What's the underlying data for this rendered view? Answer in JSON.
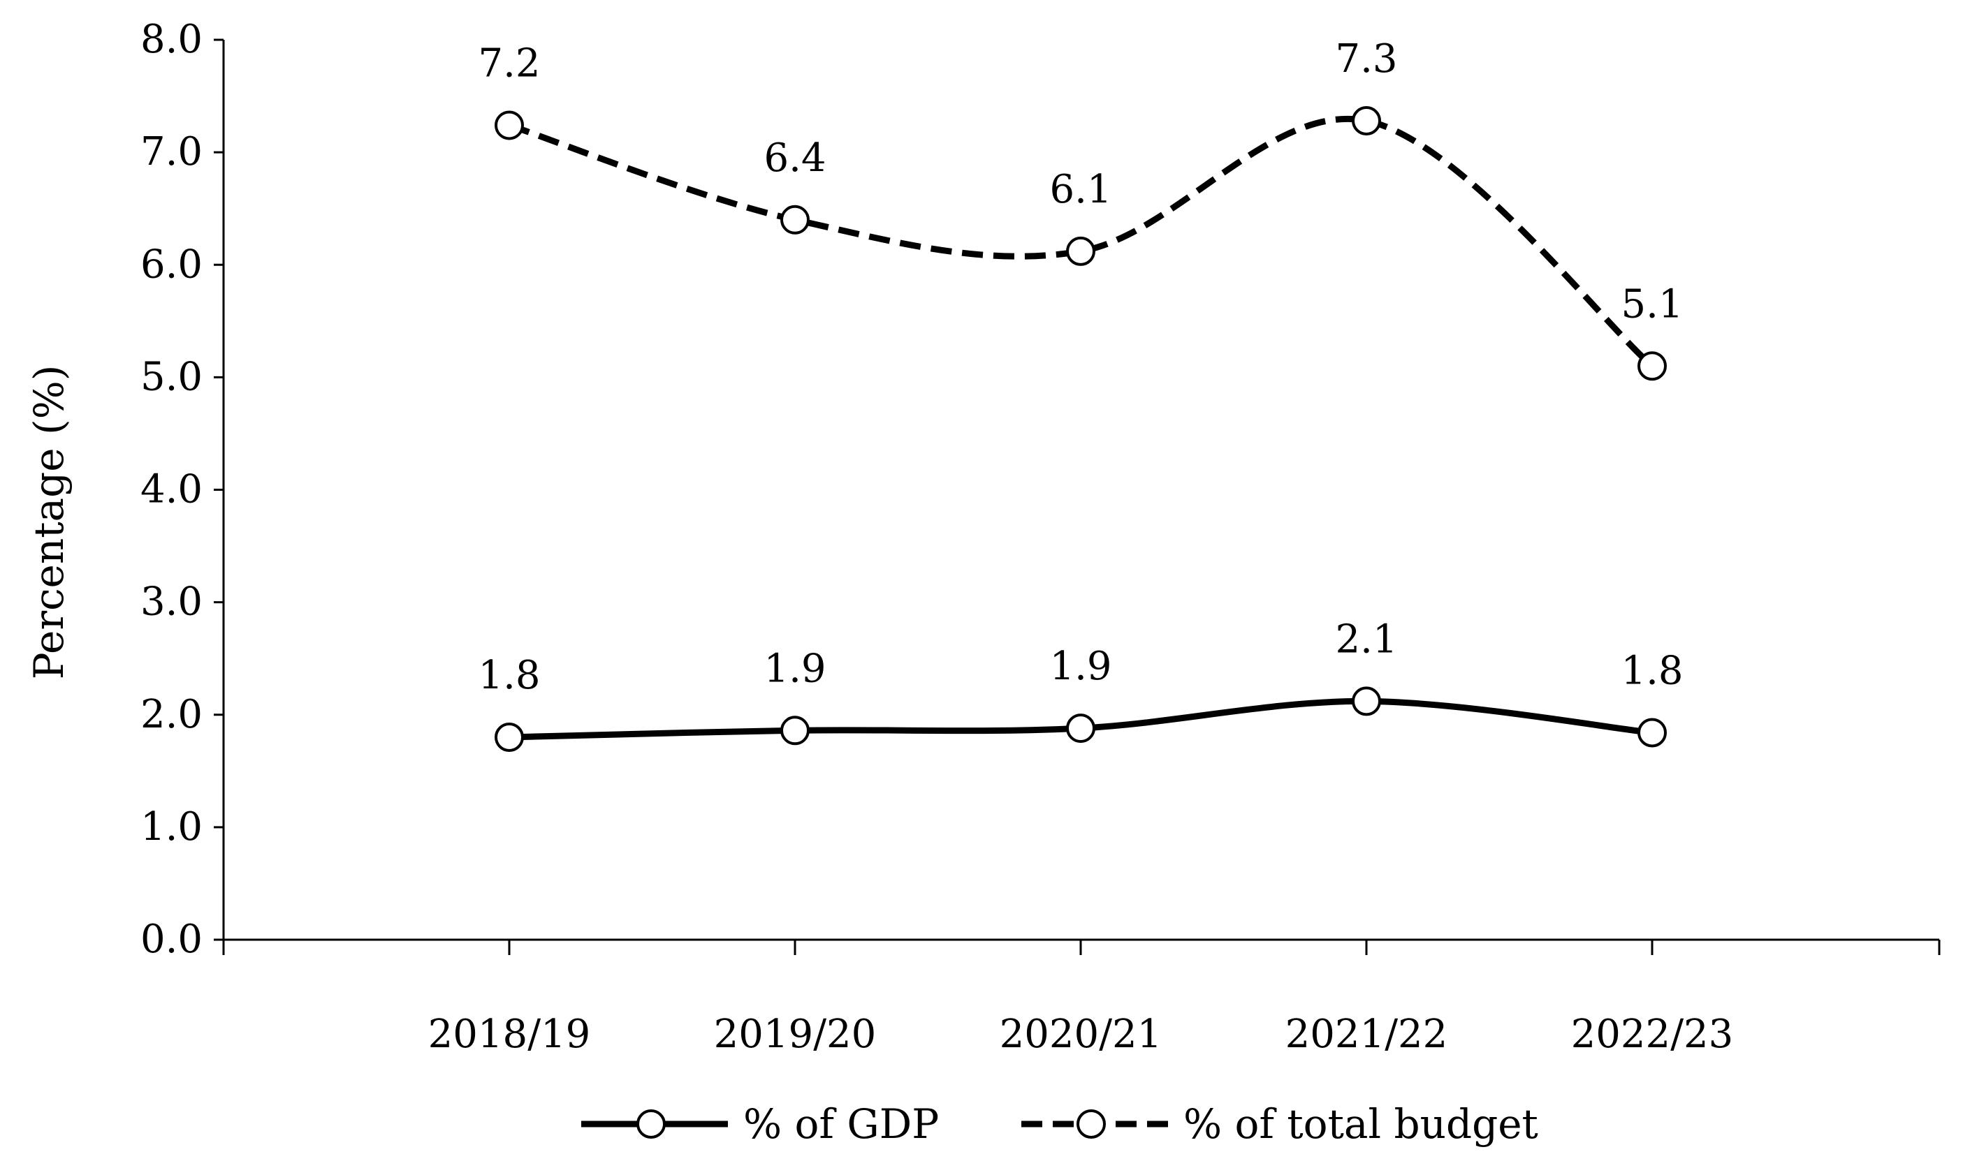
{
  "chart_data": {
    "type": "line",
    "title": "",
    "xlabel": "",
    "ylabel": "Percentage (%)",
    "ylim": [
      0,
      8
    ],
    "yticks": [
      "0.0",
      "1.0",
      "2.0",
      "3.0",
      "4.0",
      "5.0",
      "6.0",
      "7.0",
      "8.0"
    ],
    "categories": [
      "2018/19",
      "2019/20",
      "2020/21",
      "2021/22",
      "2022/23"
    ],
    "grid": false,
    "legend_position": "bottom",
    "series": [
      {
        "name": "% of GDP",
        "line_style": "solid",
        "values": [
          1.8,
          1.86,
          1.88,
          2.12,
          1.84
        ],
        "labels": [
          "1.8",
          "1.9",
          "1.9",
          "2.1",
          "1.8"
        ]
      },
      {
        "name": "% of total budget",
        "line_style": "dashed",
        "values": [
          7.24,
          6.4,
          6.12,
          7.28,
          5.1
        ],
        "labels": [
          "7.2",
          "6.4",
          "6.1",
          "7.3",
          "5.1"
        ]
      }
    ]
  }
}
